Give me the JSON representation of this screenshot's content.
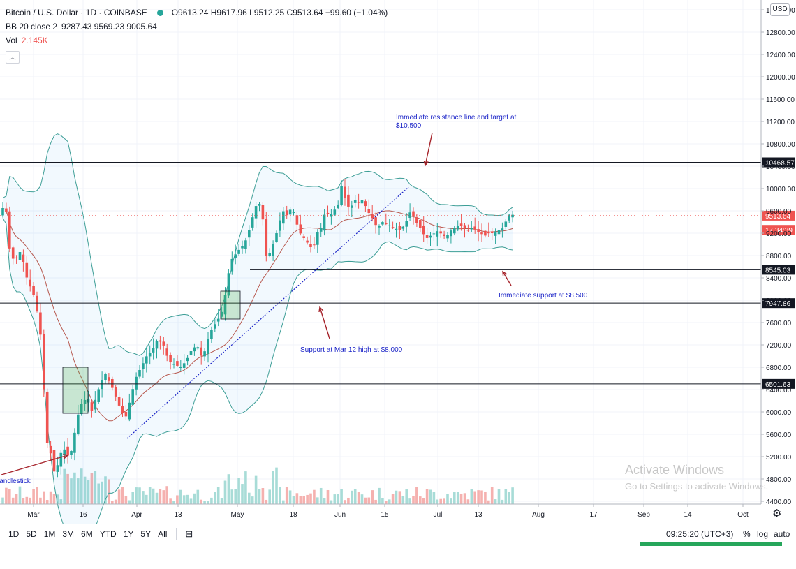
{
  "header": {
    "symbol": "Bitcoin / U.S. Dollar · 1D · COINBASE",
    "ohlc": "O9613.24 H9617.96 L9512.25 C9513.64 −99.60 (−1.04%)",
    "bb_label": "BB 20 close 2",
    "bb_values": "9287.43  9569.23  9005.64",
    "vol_label": "Vol",
    "vol_value": "2.145K",
    "collapse_icon": "chevron-up-icon"
  },
  "currency": "USD",
  "chart_data": {
    "type": "candlestick",
    "x_ticks": [
      "Mar",
      "16",
      "Apr",
      "13",
      "May",
      "18",
      "Jun",
      "15",
      "Jul",
      "13",
      "Aug",
      "17",
      "Sep",
      "14",
      "Oct"
    ],
    "y_ticks": [
      "13200.00",
      "12800.00",
      "12400.00",
      "12000.00",
      "11600.00",
      "11200.00",
      "10800.00",
      "10400.00",
      "10000.00",
      "9600.00",
      "9200.00",
      "8800.00",
      "8400.00",
      "8000.00",
      "7600.00",
      "7200.00",
      "6800.00",
      "6400.00",
      "6000.00",
      "5600.00",
      "5200.00",
      "4800.00",
      "4400.00"
    ],
    "ylim": [
      4400,
      13250
    ],
    "price_levels": [
      {
        "label": "10468.57",
        "value": 10468.57,
        "color": "#131722"
      },
      {
        "label": "9513.64",
        "value": 9513.64,
        "color": "#ef5350"
      },
      {
        "label": "17:34:39",
        "value": 9260,
        "color": "#ef5350"
      },
      {
        "label": "8545.03",
        "value": 8545.03,
        "color": "#131722"
      },
      {
        "label": "7947.86",
        "value": 7947.86,
        "color": "#131722"
      },
      {
        "label": "6501.63",
        "value": 6501.63,
        "color": "#131722"
      }
    ],
    "candles_sample": [
      {
        "date": "2020-02-25",
        "open": 9690,
        "high": 9900,
        "low": 9300,
        "close": 9310
      },
      {
        "date": "2020-03-01",
        "open": 8560,
        "high": 8760,
        "low": 8400,
        "close": 8530
      },
      {
        "date": "2020-03-12",
        "open": 7947,
        "high": 7990,
        "low": 4600,
        "close": 4900
      },
      {
        "date": "2020-04-01",
        "open": 6430,
        "high": 6700,
        "low": 6150,
        "close": 6650
      },
      {
        "date": "2020-05-01",
        "open": 8620,
        "high": 9060,
        "low": 8600,
        "close": 8830
      },
      {
        "date": "2020-06-01",
        "open": 9450,
        "high": 10400,
        "low": 9420,
        "close": 10200
      },
      {
        "date": "2020-07-01",
        "open": 9140,
        "high": 9300,
        "low": 9080,
        "close": 9230
      },
      {
        "date": "2020-07-23",
        "open": 9613.24,
        "high": 9617.96,
        "low": 9512.25,
        "close": 9513.64
      }
    ]
  },
  "annotations": {
    "resistance_line1": "Immediate resistance line and target at",
    "resistance_line2": "$10,500",
    "support_8500": "Immediate support at $8,500",
    "support_8000": "Support at Mar 12 high at $8,000",
    "candlestick": "Candlestick"
  },
  "bottombar": {
    "timeframes": [
      "1D",
      "5D",
      "1M",
      "3M",
      "6M",
      "YTD",
      "1Y",
      "5Y",
      "All"
    ],
    "calendar_icon": "calendar-icon",
    "clock": "09:25:20 (UTC+3)",
    "percent": "%",
    "log": "log",
    "auto": "auto"
  },
  "watermark": {
    "line1": "Activate Windows",
    "line2": "Go to Settings to activate Windows."
  }
}
